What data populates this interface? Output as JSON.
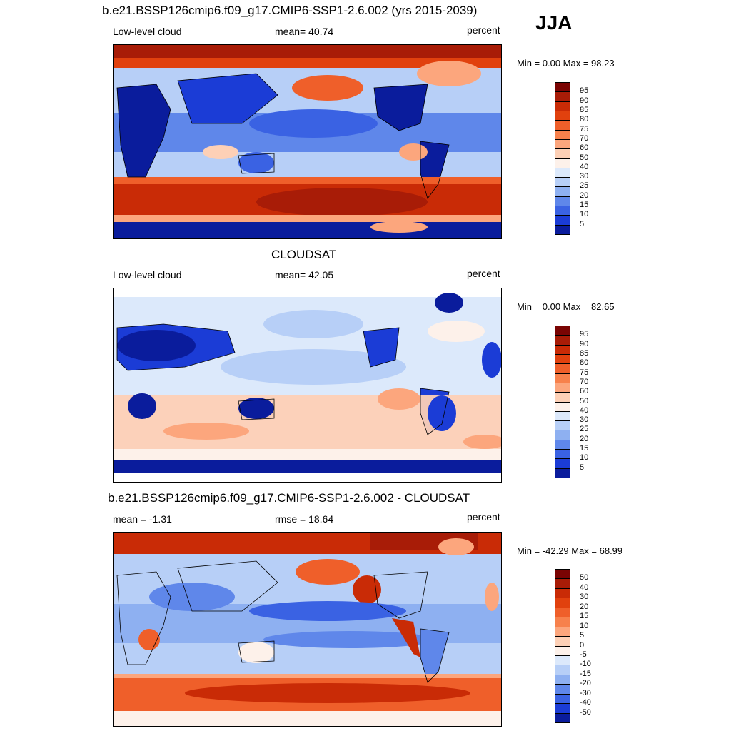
{
  "season": "JJA",
  "panels": [
    {
      "id": "model",
      "title": "b.e21.BSSP126cmip6.f09_g17.CMIP6-SSP1-2.6.002 (yrs 2015-2039)",
      "left_label": "Low-level cloud",
      "center_label": "mean=  40.74",
      "right_label": "percent",
      "minmax": "Min =    0.00 Max =  98.23",
      "colorbar": {
        "labels": [
          "95",
          "90",
          "85",
          "80",
          "75",
          "70",
          "60",
          "50",
          "40",
          "30",
          "25",
          "20",
          "15",
          "10",
          "5"
        ],
        "colors": [
          "#7a0403",
          "#a81c07",
          "#c92b06",
          "#e1410e",
          "#ef5f2a",
          "#f7814c",
          "#fca67d",
          "#fdd0b6",
          "#fdf1ea",
          "#dce9fb",
          "#b7cff7",
          "#8eb0f1",
          "#5f87ea",
          "#3a62e3",
          "#1b3cd6",
          "#0a1c9c"
        ]
      }
    },
    {
      "id": "obs",
      "title": "CLOUDSAT",
      "left_label": "Low-level cloud",
      "center_label": "mean=  42.05",
      "right_label": "percent",
      "minmax": "Min =    0.00 Max =  82.65",
      "colorbar": {
        "labels": [
          "95",
          "90",
          "85",
          "80",
          "75",
          "70",
          "60",
          "50",
          "40",
          "30",
          "25",
          "20",
          "15",
          "10",
          "5"
        ],
        "colors": [
          "#7a0403",
          "#a81c07",
          "#c92b06",
          "#e1410e",
          "#ef5f2a",
          "#f7814c",
          "#fca67d",
          "#fdd0b6",
          "#fdf1ea",
          "#dce9fb",
          "#b7cff7",
          "#8eb0f1",
          "#5f87ea",
          "#3a62e3",
          "#1b3cd6",
          "#0a1c9c"
        ]
      }
    },
    {
      "id": "diff",
      "title": "b.e21.BSSP126cmip6.f09_g17.CMIP6-SSP1-2.6.002 - CLOUDSAT",
      "left_label": "mean =  -1.31",
      "center_label": "rmse =  18.64",
      "right_label": "percent",
      "minmax": "Min = -42.29 Max =  68.99",
      "colorbar": {
        "labels": [
          "50",
          "40",
          "30",
          "20",
          "15",
          "10",
          "5",
          "0",
          "-5",
          "-10",
          "-15",
          "-20",
          "-30",
          "-40",
          "-50"
        ],
        "colors": [
          "#7a0403",
          "#a81c07",
          "#c92b06",
          "#e1410e",
          "#ef5f2a",
          "#f7814c",
          "#fca67d",
          "#fdd0b6",
          "#fdf1ea",
          "#dce9fb",
          "#b7cff7",
          "#8eb0f1",
          "#5f87ea",
          "#3a62e3",
          "#1b3cd6",
          "#0a1c9c"
        ]
      }
    }
  ]
}
